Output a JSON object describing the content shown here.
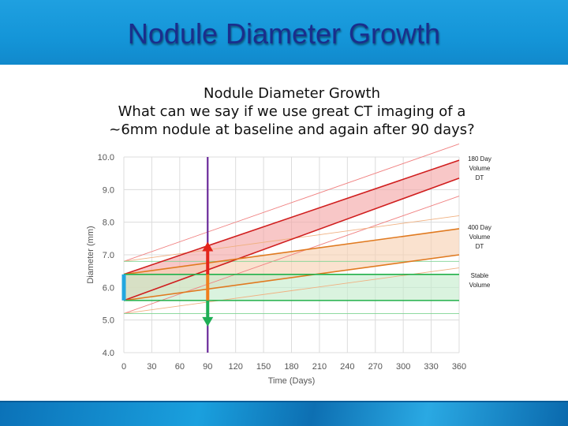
{
  "slide": {
    "title": "Nodule Diameter Growth"
  },
  "chart_data": {
    "type": "line",
    "title": "Nodule Diameter Growth",
    "subtitle_lines": [
      "What can we say if we use great CT imaging of a",
      "~6mm nodule at baseline and again after 90 days?"
    ],
    "xlabel": "Time (Days)",
    "ylabel": "Diameter (mm)",
    "xlim": [
      0,
      360
    ],
    "ylim": [
      4.0,
      10.0
    ],
    "xticks": [
      0,
      30,
      60,
      90,
      120,
      150,
      180,
      210,
      240,
      270,
      300,
      330,
      360
    ],
    "yticks": [
      4.0,
      5.0,
      6.0,
      7.0,
      8.0,
      9.0,
      10.0
    ],
    "ytick_labels": [
      "4.0",
      "5.0",
      "6.0",
      "7.0",
      "8.0",
      "9.0",
      "10.0"
    ],
    "grid": true,
    "bands": [
      {
        "name": "180 Day Volume DT",
        "label_lines": [
          "180 Day",
          "Volume",
          "DT"
        ],
        "fill": "#f4a5a5",
        "stroke": "#d01e1e",
        "lower": {
          "x": [
            0,
            360
          ],
          "y": [
            5.6,
            9.35
          ]
        },
        "upper": {
          "x": [
            0,
            360
          ],
          "y": [
            6.4,
            9.9
          ]
        }
      },
      {
        "name": "400 Day Volume DT",
        "label_lines": [
          "400 Day",
          "Volume",
          "DT"
        ],
        "fill": "#f7d0b2",
        "stroke": "#e07a20",
        "lower": {
          "x": [
            0,
            360
          ],
          "y": [
            5.6,
            7.0
          ]
        },
        "upper": {
          "x": [
            0,
            360
          ],
          "y": [
            6.4,
            7.8
          ]
        }
      },
      {
        "name": "Stable Volume",
        "label_lines": [
          "Stable",
          "Volume"
        ],
        "fill": "#c3eccb",
        "stroke": "#22b04a",
        "lower": {
          "x": [
            0,
            360
          ],
          "y": [
            5.6,
            5.6
          ]
        },
        "upper": {
          "x": [
            0,
            360
          ],
          "y": [
            6.4,
            6.4
          ]
        }
      }
    ],
    "thin_lines": [
      {
        "color": "#f08080",
        "x": [
          0,
          360
        ],
        "y": [
          6.8,
          10.4
        ]
      },
      {
        "color": "#f08080",
        "x": [
          0,
          360
        ],
        "y": [
          5.2,
          8.8
        ]
      },
      {
        "color": "#f0b080",
        "x": [
          0,
          360
        ],
        "y": [
          6.8,
          8.2
        ]
      },
      {
        "color": "#f0b080",
        "x": [
          0,
          360
        ],
        "y": [
          5.2,
          6.6
        ]
      },
      {
        "color": "#7fd493",
        "x": [
          0,
          360
        ],
        "y": [
          6.8,
          6.8
        ]
      },
      {
        "color": "#7fd493",
        "x": [
          0,
          360
        ],
        "y": [
          5.2,
          5.2
        ]
      }
    ],
    "baseline_bar": {
      "x": 0,
      "y_range": [
        5.6,
        6.4
      ],
      "color": "#22a7e0"
    },
    "marker_line": {
      "x": 90,
      "color": "#6a2a9a"
    },
    "arrows": [
      {
        "name": "up",
        "x": 90,
        "from": 6.4,
        "to": 7.4,
        "color": "#e3241b"
      },
      {
        "name": "down",
        "x": 90,
        "from": 5.6,
        "to": 4.8,
        "color": "#1fae55"
      }
    ],
    "marker_segment": {
      "x": 90,
      "from": 5.6,
      "to": 6.4,
      "color": "#f07f1d"
    }
  }
}
